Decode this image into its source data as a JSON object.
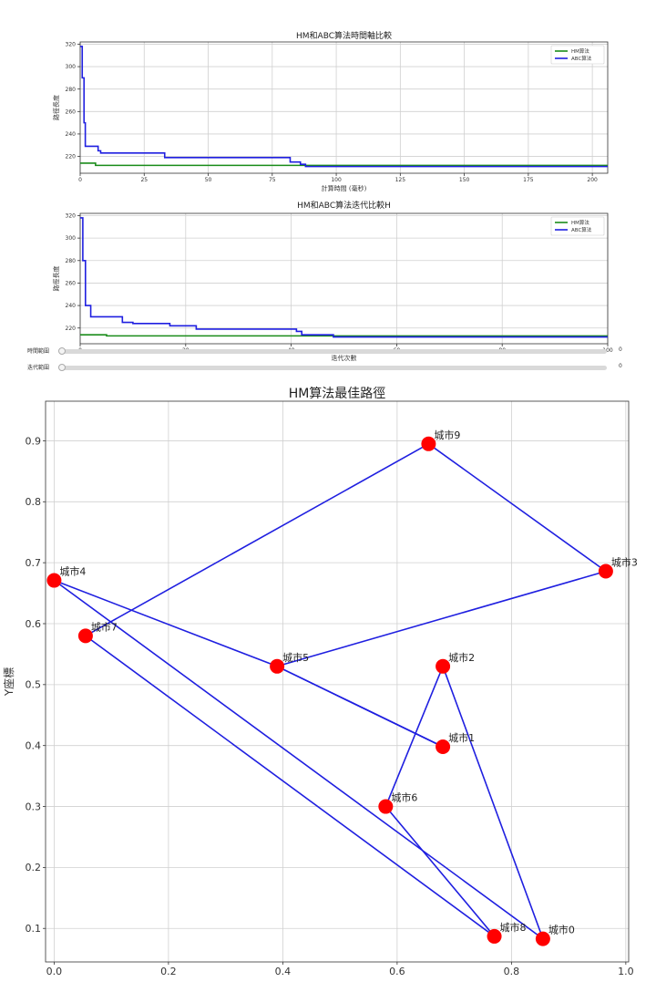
{
  "chart_data": [
    {
      "type": "line",
      "title": "HM和ABC算法時間軸比較",
      "xlabel": "計算時間 (毫秒)",
      "ylabel": "路徑長度",
      "xlim": [
        0,
        206
      ],
      "ylim": [
        205,
        322
      ],
      "xticks": [
        0,
        25,
        50,
        75,
        100,
        125,
        150,
        175,
        200
      ],
      "yticks": [
        220,
        240,
        260,
        280,
        300,
        320
      ],
      "grid": true,
      "legend": "top-right",
      "series": [
        {
          "name": "HM算法",
          "color": "#1a8c1a",
          "step": true,
          "x": [
            0,
            6,
            6,
            206
          ],
          "y": [
            214,
            214,
            212,
            212
          ]
        },
        {
          "name": "ABC算法",
          "color": "#1f1fe0",
          "step": true,
          "x": [
            0,
            0.8,
            1.5,
            2,
            6,
            7,
            8,
            31,
            33,
            80,
            82,
            86,
            88,
            206
          ],
          "y": [
            318,
            290,
            250,
            229,
            229,
            225,
            223,
            223,
            219,
            219,
            215,
            213,
            211,
            211
          ]
        }
      ]
    },
    {
      "type": "line",
      "title": "HM和ABC算法迭代比較H",
      "xlabel": "迭代次數",
      "ylabel": "路徑長度",
      "xlim": [
        0,
        100
      ],
      "ylim": [
        206,
        322
      ],
      "xticks": [
        0,
        20,
        40,
        60,
        80,
        100
      ],
      "yticks": [
        220,
        240,
        260,
        280,
        300,
        320
      ],
      "grid": true,
      "legend": "top-right",
      "series": [
        {
          "name": "HM算法",
          "color": "#1a8c1a",
          "step": true,
          "x": [
            0,
            3,
            5,
            100
          ],
          "y": [
            214,
            214,
            213,
            213
          ]
        },
        {
          "name": "ABC算法",
          "color": "#1f1fe0",
          "step": true,
          "x": [
            0,
            0.5,
            1,
            2,
            7,
            8,
            10,
            17,
            20,
            22,
            40,
            41,
            42,
            48,
            100
          ],
          "y": [
            318,
            280,
            240,
            230,
            230,
            225,
            224,
            222,
            222,
            219,
            219,
            217,
            214,
            212,
            212
          ]
        }
      ]
    },
    {
      "type": "scatter",
      "title": "HM算法最佳路徑",
      "xlabel": "",
      "ylabel": "Y座標",
      "xlim": [
        -0.015,
        1.005
      ],
      "ylim": [
        0.045,
        0.965
      ],
      "xticks": [
        0.0,
        0.2,
        0.4,
        0.6,
        0.8,
        1.0
      ],
      "yticks": [
        0.1,
        0.2,
        0.3,
        0.4,
        0.5,
        0.6,
        0.7,
        0.8,
        0.9
      ],
      "grid": true,
      "point_color": "#ff0000",
      "line_color": "#1f1fe0",
      "points": [
        {
          "label": "城市0",
          "x": 0.855,
          "y": 0.083
        },
        {
          "label": "城市1",
          "x": 0.68,
          "y": 0.398
        },
        {
          "label": "城市2",
          "x": 0.68,
          "y": 0.53
        },
        {
          "label": "城市3",
          "x": 0.965,
          "y": 0.686
        },
        {
          "label": "城市4",
          "x": 0.0,
          "y": 0.671
        },
        {
          "label": "城市5",
          "x": 0.39,
          "y": 0.53
        },
        {
          "label": "城市6",
          "x": 0.58,
          "y": 0.3
        },
        {
          "label": "城市7",
          "x": 0.055,
          "y": 0.58
        },
        {
          "label": "城市8",
          "x": 0.77,
          "y": 0.087
        },
        {
          "label": "城市9",
          "x": 0.655,
          "y": 0.895
        }
      ],
      "route": [
        0,
        2,
        6,
        8,
        7,
        9,
        3,
        5,
        1,
        5,
        4,
        0
      ]
    }
  ],
  "sliders": [
    {
      "label": "時間範圍",
      "value": "0"
    },
    {
      "label": "迭代範圍",
      "value": "0"
    }
  ]
}
